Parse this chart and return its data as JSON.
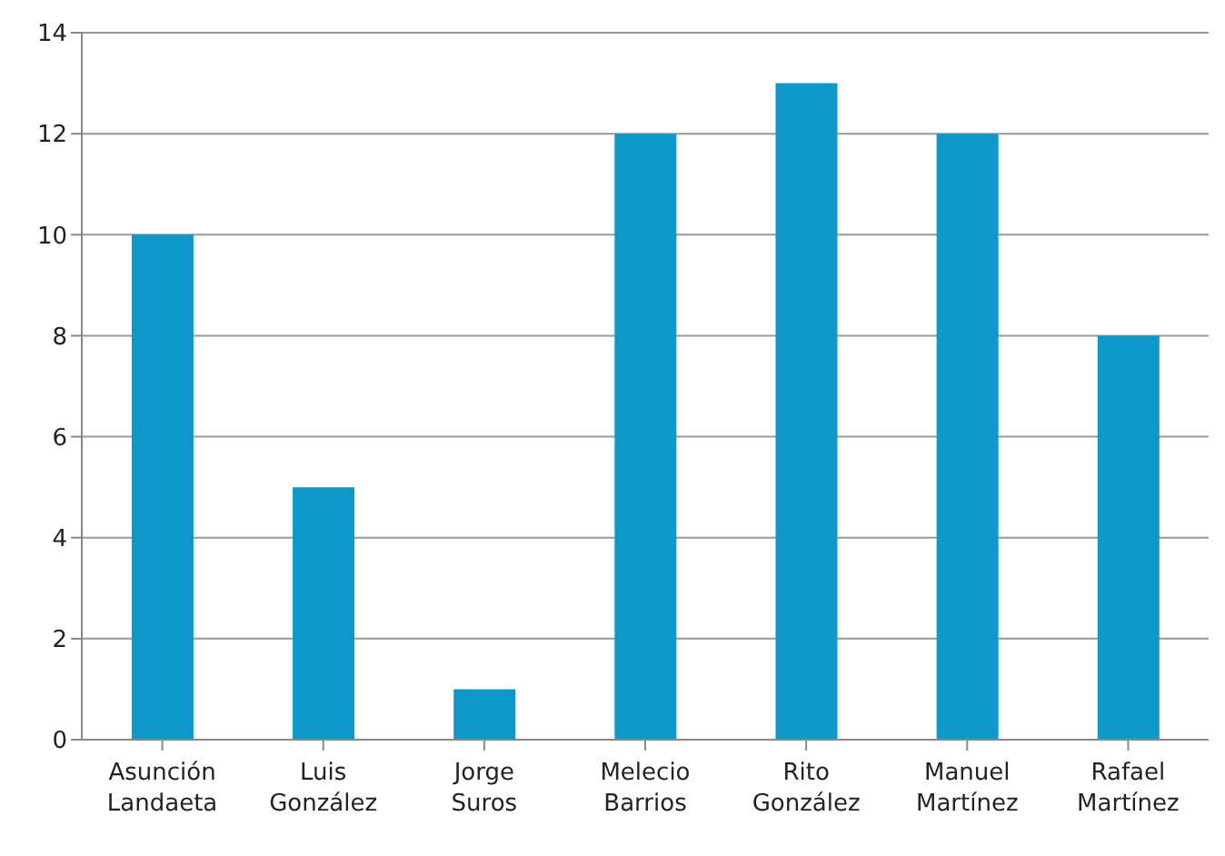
{
  "chart_data": {
    "type": "bar",
    "categories": [
      "Asunción Landaeta",
      "Luis González",
      "Jorge Suros",
      "Melecio Barrios",
      "Rito González",
      "Manuel Martínez",
      "Rafael Martínez"
    ],
    "values": [
      10,
      5,
      1,
      12,
      13,
      12,
      8
    ],
    "color": "#0e97c9",
    "ylim": [
      0,
      14
    ],
    "yticks": [
      0,
      2,
      4,
      6,
      8,
      10,
      12,
      14
    ],
    "grid": "y"
  }
}
